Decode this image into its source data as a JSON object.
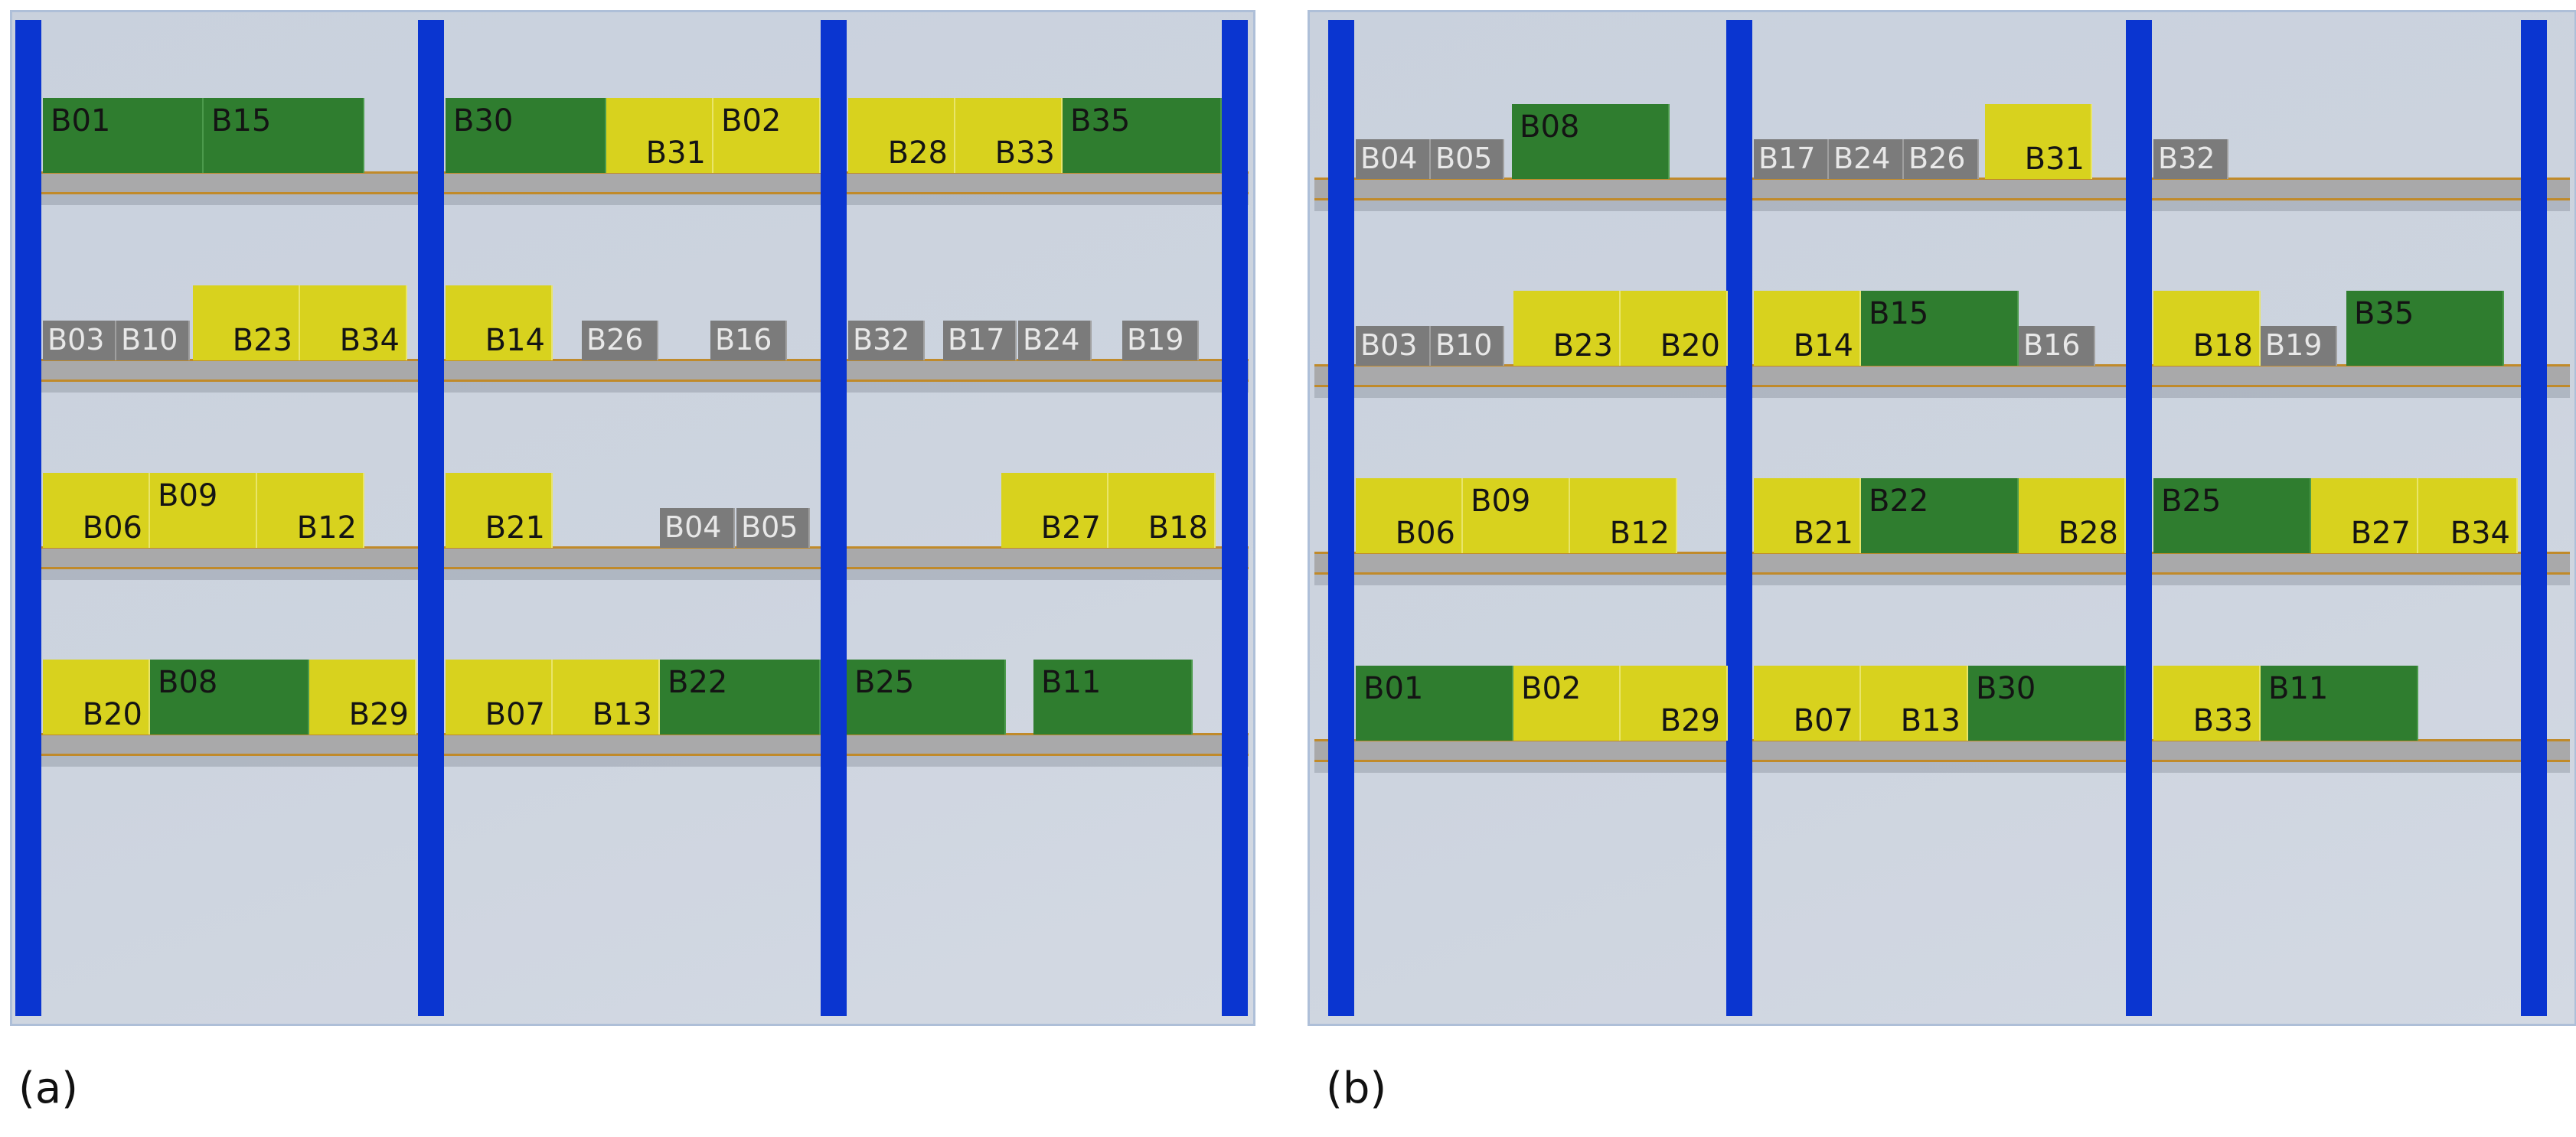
{
  "panels": [
    {
      "caption": "(a)",
      "shelves": [
        [
          {
            "label": "B01",
            "color": "green"
          },
          {
            "label": "B15",
            "color": "green"
          },
          {
            "label": "B30",
            "color": "green"
          },
          {
            "label": "B31",
            "color": "yellow"
          },
          {
            "label": "B02",
            "color": "yellow"
          },
          {
            "label": "B28",
            "color": "yellow"
          },
          {
            "label": "B33",
            "color": "yellow"
          },
          {
            "label": "B35",
            "color": "green"
          }
        ],
        [
          {
            "label": "B03",
            "color": "gray"
          },
          {
            "label": "B10",
            "color": "gray"
          },
          {
            "label": "B23",
            "color": "yellow"
          },
          {
            "label": "B34",
            "color": "yellow"
          },
          {
            "label": "B14",
            "color": "yellow"
          },
          {
            "label": "B26",
            "color": "gray"
          },
          {
            "label": "B16",
            "color": "gray"
          },
          {
            "label": "B32",
            "color": "gray"
          },
          {
            "label": "B17",
            "color": "gray"
          },
          {
            "label": "B24",
            "color": "gray"
          },
          {
            "label": "B19",
            "color": "gray"
          }
        ],
        [
          {
            "label": "B06",
            "color": "yellow"
          },
          {
            "label": "B09",
            "color": "yellow"
          },
          {
            "label": "B12",
            "color": "yellow"
          },
          {
            "label": "B21",
            "color": "yellow"
          },
          {
            "label": "B04",
            "color": "gray"
          },
          {
            "label": "B05",
            "color": "gray"
          },
          {
            "label": "B27",
            "color": "yellow"
          },
          {
            "label": "B18",
            "color": "yellow"
          }
        ],
        [
          {
            "label": "B20",
            "color": "yellow"
          },
          {
            "label": "B08",
            "color": "green"
          },
          {
            "label": "B29",
            "color": "yellow"
          },
          {
            "label": "B07",
            "color": "yellow"
          },
          {
            "label": "B13",
            "color": "yellow"
          },
          {
            "label": "B22",
            "color": "green"
          },
          {
            "label": "B25",
            "color": "green"
          },
          {
            "label": "B11",
            "color": "green"
          }
        ]
      ]
    },
    {
      "caption": "(b)",
      "shelves": [
        [
          {
            "label": "B04",
            "color": "gray"
          },
          {
            "label": "B05",
            "color": "gray"
          },
          {
            "label": "B08",
            "color": "green"
          },
          {
            "label": "B17",
            "color": "gray"
          },
          {
            "label": "B24",
            "color": "gray"
          },
          {
            "label": "B26",
            "color": "gray"
          },
          {
            "label": "B31",
            "color": "yellow"
          },
          {
            "label": "B32",
            "color": "gray"
          }
        ],
        [
          {
            "label": "B03",
            "color": "gray"
          },
          {
            "label": "B10",
            "color": "gray"
          },
          {
            "label": "B23",
            "color": "yellow"
          },
          {
            "label": "B20",
            "color": "yellow"
          },
          {
            "label": "B14",
            "color": "yellow"
          },
          {
            "label": "B15",
            "color": "green"
          },
          {
            "label": "B16",
            "color": "gray"
          },
          {
            "label": "B18",
            "color": "yellow"
          },
          {
            "label": "B19",
            "color": "gray"
          },
          {
            "label": "B35",
            "color": "green"
          }
        ],
        [
          {
            "label": "B06",
            "color": "yellow"
          },
          {
            "label": "B09",
            "color": "yellow"
          },
          {
            "label": "B12",
            "color": "yellow"
          },
          {
            "label": "B21",
            "color": "yellow"
          },
          {
            "label": "B22",
            "color": "green"
          },
          {
            "label": "B28",
            "color": "yellow"
          },
          {
            "label": "B25",
            "color": "green"
          },
          {
            "label": "B27",
            "color": "yellow"
          },
          {
            "label": "B34",
            "color": "yellow"
          }
        ],
        [
          {
            "label": "B01",
            "color": "green"
          },
          {
            "label": "B02",
            "color": "yellow"
          },
          {
            "label": "B29",
            "color": "yellow"
          },
          {
            "label": "B07",
            "color": "yellow"
          },
          {
            "label": "B13",
            "color": "yellow"
          },
          {
            "label": "B30",
            "color": "green"
          },
          {
            "label": "B33",
            "color": "yellow"
          },
          {
            "label": "B11",
            "color": "green"
          }
        ]
      ]
    }
  ],
  "colors": {
    "yellow": "#d8d21e",
    "green": "#2f7d2f",
    "gray": "#7b7b7b",
    "upright": "#0a35d0",
    "beam": "#a9a9aa",
    "beam_edge": "#c08a2a"
  }
}
